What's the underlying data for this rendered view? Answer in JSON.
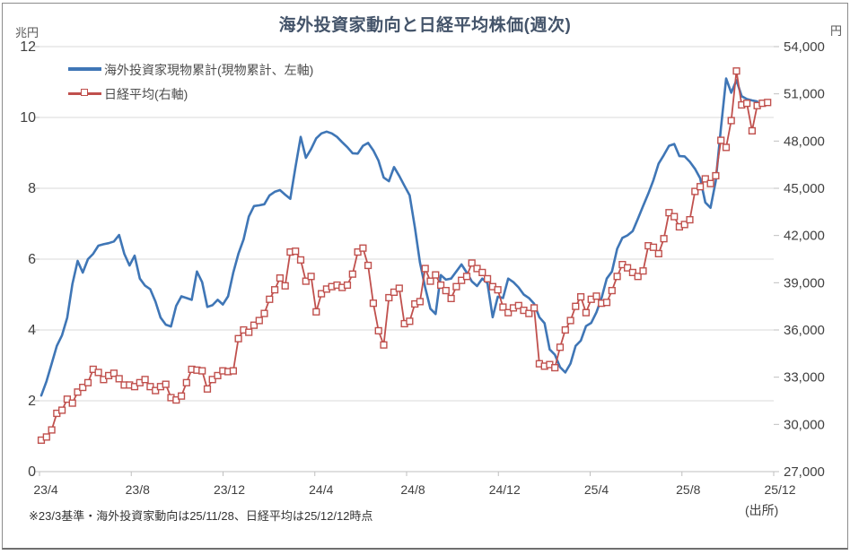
{
  "title": "海外投資家動向と日経平均株価(週次)",
  "colors": {
    "blue": "#3F76B6",
    "red": "#C0504D",
    "grid": "#D9D9D9",
    "axis_line": "#BFBFBF",
    "title_text": "#44546A",
    "axis_text": "#404040",
    "legend_text": "#4D4D4D"
  },
  "left_axis": {
    "unit": "兆円",
    "tick_labels": [
      "12",
      "10",
      "8",
      "6",
      "4",
      "2",
      "0"
    ],
    "min": 0,
    "max": 12
  },
  "right_axis": {
    "unit": "円",
    "tick_labels": [
      "54,000",
      "51,000",
      "48,000",
      "45,000",
      "42,000",
      "39,000",
      "36,000",
      "33,000",
      "30,000",
      "27,000"
    ],
    "min": 27000,
    "max": 54000
  },
  "x_axis": {
    "tick_labels": [
      "23/4",
      "23/8",
      "23/12",
      "24/4",
      "24/8",
      "24/12",
      "25/4",
      "25/8",
      "25/12"
    ]
  },
  "legend": [
    {
      "label": "海外投資家現物累計(現物累計、左軸)",
      "color": "#3F76B6",
      "type": "line"
    },
    {
      "label": "日経平均(右軸)",
      "color": "#C0504D",
      "type": "line-square-marker"
    }
  ],
  "footnote": "※23/3基準・海外投資家動向は25/11/28、日経平均は25/12/12時点",
  "source_label": "(出所)",
  "chart_data": {
    "type": "line",
    "x_unit": "week",
    "x_start": "23/4",
    "x_end": "25/12",
    "grid": "horizontal",
    "left_ylim": [
      0,
      12
    ],
    "right_ylim": [
      27000,
      54000
    ],
    "series": [
      {
        "name": "海外投資家現物累計(現物累計、左軸)",
        "axis": "left",
        "unit": "兆円",
        "color": "#3F76B6",
        "marker": "none",
        "values": [
          2.15,
          2.55,
          3.05,
          3.55,
          3.85,
          4.35,
          5.3,
          5.95,
          5.62,
          6.0,
          6.15,
          6.38,
          6.42,
          6.45,
          6.5,
          6.68,
          6.15,
          5.82,
          6.1,
          5.45,
          5.25,
          5.15,
          4.8,
          4.35,
          4.15,
          4.1,
          4.68,
          4.95,
          4.9,
          4.85,
          5.65,
          5.35,
          4.65,
          4.7,
          4.85,
          4.72,
          4.95,
          5.62,
          6.15,
          6.56,
          7.2,
          7.5,
          7.52,
          7.55,
          7.8,
          7.9,
          7.95,
          7.82,
          7.7,
          8.6,
          9.45,
          8.86,
          9.11,
          9.41,
          9.55,
          9.6,
          9.55,
          9.45,
          9.3,
          9.16,
          8.99,
          8.98,
          9.2,
          9.28,
          9.07,
          8.78,
          8.3,
          8.2,
          8.6,
          8.35,
          8.07,
          7.8,
          6.9,
          5.9,
          5.2,
          4.6,
          4.45,
          5.55,
          5.42,
          5.45,
          5.65,
          5.85,
          5.62,
          5.37,
          5.24,
          5.45,
          5.32,
          4.36,
          4.94,
          4.9,
          5.45,
          5.35,
          5.2,
          5.0,
          4.9,
          4.74,
          4.36,
          4.19,
          3.45,
          3.3,
          2.95,
          2.8,
          3.05,
          3.55,
          3.7,
          4.11,
          4.2,
          4.5,
          4.9,
          5.45,
          5.65,
          6.29,
          6.6,
          6.67,
          6.79,
          7.14,
          7.5,
          7.85,
          8.23,
          8.7,
          8.94,
          9.2,
          9.25,
          8.91,
          8.9,
          8.75,
          8.55,
          8.28,
          7.6,
          7.45,
          8.2,
          9.7,
          11.1,
          10.7,
          11.05,
          10.6,
          10.52,
          10.48,
          10.45
        ]
      },
      {
        "name": "日経平均(右軸)",
        "axis": "right",
        "unit": "円",
        "color": "#C0504D",
        "marker": "square",
        "values": [
          29000,
          29200,
          29650,
          30700,
          30900,
          31600,
          31350,
          32050,
          32350,
          32650,
          33500,
          33300,
          32850,
          33100,
          33250,
          32900,
          32500,
          32500,
          32400,
          32650,
          32850,
          32400,
          32150,
          32400,
          32550,
          31700,
          31550,
          31800,
          32650,
          33500,
          33450,
          33400,
          32250,
          32850,
          33100,
          33400,
          33350,
          33400,
          35450,
          36000,
          35850,
          36300,
          36600,
          37050,
          37950,
          38550,
          39300,
          38800,
          40950,
          41000,
          40450,
          39100,
          39400,
          37150,
          38300,
          38600,
          38750,
          38850,
          38700,
          38850,
          39550,
          40950,
          41200,
          40100,
          37700,
          35950,
          35050,
          38050,
          38400,
          38650,
          36400,
          36550,
          37650,
          37800,
          39900,
          39100,
          39500,
          38850,
          38500,
          38000,
          38750,
          39150,
          39400,
          40250,
          39900,
          39650,
          39250,
          38750,
          38550,
          37450,
          37100,
          37400,
          37550,
          37250,
          37050,
          37400,
          33850,
          33700,
          33800,
          33600,
          34900,
          36000,
          36600,
          37500,
          38100,
          37100,
          37950,
          38150,
          37700,
          37750,
          38500,
          39400,
          40150,
          39950,
          39650,
          39400,
          39750,
          41350,
          41250,
          40850,
          41800,
          43450,
          43200,
          42550,
          42700,
          43000,
          44800,
          45100,
          45600,
          45300,
          45800,
          48050,
          47600,
          49300,
          52450,
          50300,
          50400,
          48650,
          50250,
          50400,
          50450
        ]
      }
    ]
  }
}
